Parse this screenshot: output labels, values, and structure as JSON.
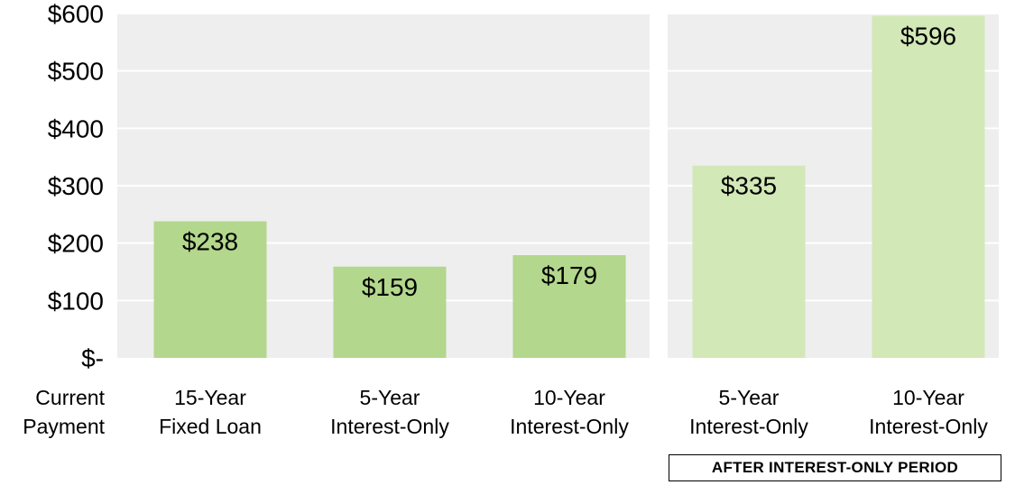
{
  "chart_data": {
    "type": "bar",
    "row_label": "Current\nPayment",
    "categories": [
      "15-Year\nFixed Loan",
      "5-Year\nInterest-Only",
      "10-Year\nInterest-Only",
      "5-Year\nInterest-Only",
      "10-Year\nInterest-Only"
    ],
    "values": [
      238,
      159,
      179,
      335,
      596
    ],
    "value_labels": [
      "$238",
      "$159",
      "$179",
      "$335",
      "$596"
    ],
    "groups": [
      {
        "label": "",
        "category_indices": [
          0,
          1,
          2
        ]
      },
      {
        "label": "AFTER INTEREST-ONLY PERIOD",
        "category_indices": [
          3,
          4
        ]
      }
    ],
    "ylim": [
      0,
      600
    ],
    "yticks": [
      0,
      100,
      200,
      300,
      400,
      500,
      600
    ],
    "ytick_labels": [
      "$-",
      "$100",
      "$200",
      "$300",
      "$400",
      "$500",
      "$600"
    ],
    "grid": true,
    "colors": {
      "current": "#b3d78c",
      "after": "#d3e8b7",
      "panel": "#eeeeee",
      "grid": "#ffffff"
    }
  }
}
